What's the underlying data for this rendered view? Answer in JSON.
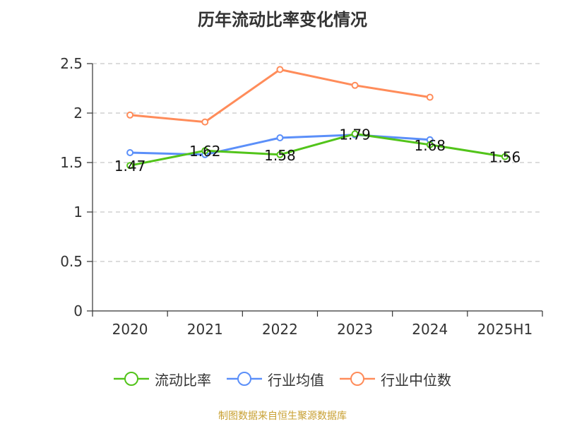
{
  "chart_data": {
    "type": "line",
    "title": "历年流动比率变化情况",
    "categories": [
      "2020",
      "2021",
      "2022",
      "2023",
      "2024",
      "2025H1"
    ],
    "yticks": [
      "0",
      "0.5",
      "1",
      "1.5",
      "2",
      "2.5"
    ],
    "ylim": [
      0,
      2.5
    ],
    "grid": true,
    "legend_position": "bottom",
    "series": [
      {
        "name": "流动比率",
        "color": "#52c41a",
        "values": [
          1.47,
          1.62,
          1.58,
          1.79,
          1.68,
          1.56
        ],
        "labels": [
          "1.47",
          "1.62",
          "1.58",
          "1.79",
          "1.68",
          "1.56"
        ]
      },
      {
        "name": "行业均值",
        "color": "#5b8ff9",
        "values": [
          1.6,
          1.58,
          1.75,
          1.78,
          1.73,
          null
        ]
      },
      {
        "name": "行业中位数",
        "color": "#ff8c5a",
        "values": [
          1.98,
          1.91,
          2.44,
          2.28,
          2.16,
          null
        ]
      }
    ],
    "source": "制图数据来自恒生聚源数据库"
  }
}
